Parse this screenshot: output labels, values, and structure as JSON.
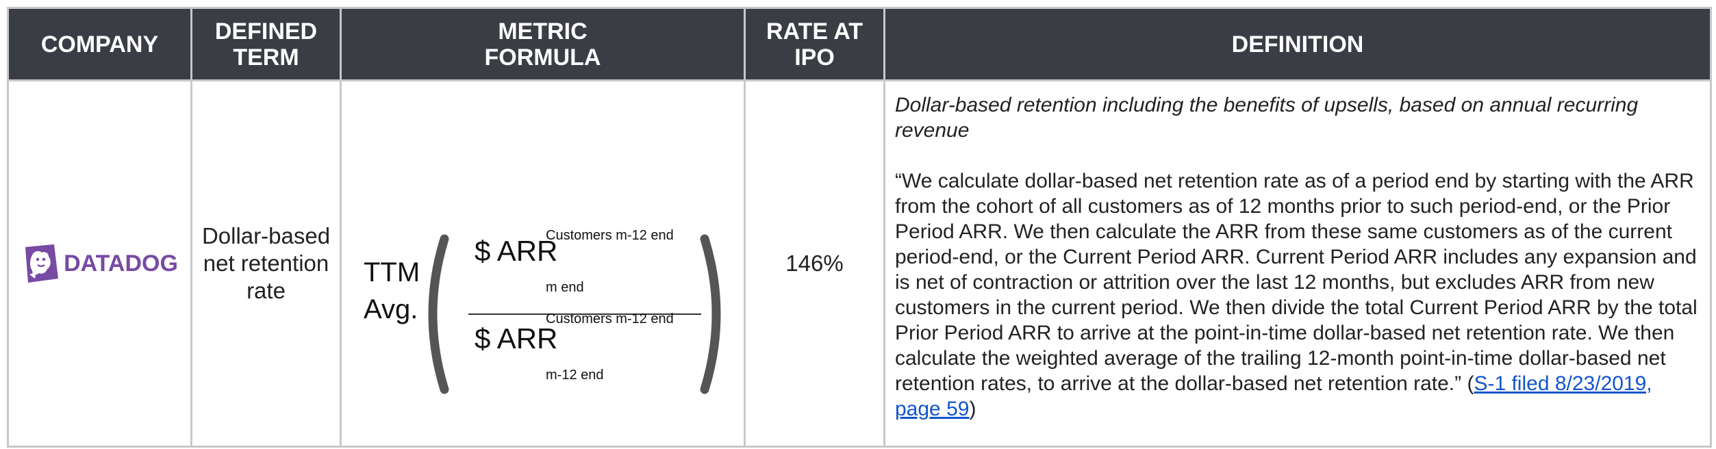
{
  "headers": {
    "company": "COMPANY",
    "term_line1": "DEFINED",
    "term_line2": "TERM",
    "formula_line1": "METRIC",
    "formula_line2": "FORMULA",
    "rate_line1": "RATE AT",
    "rate_line2": "IPO",
    "definition": "DEFINITION"
  },
  "row": {
    "company_logo_text": "DATADOG",
    "term_line1": "Dollar-based",
    "term_line2": "net retention",
    "term_line3": "rate",
    "formula": {
      "prefix_line1": "TTM",
      "prefix_line2": "Avg.",
      "numerator_main": "$ ARR",
      "numerator_superscript": "Customers m-12 end",
      "numerator_subscript": "m end",
      "denominator_main": "$ ARR",
      "denominator_superscript": "Customers m-12 end",
      "denominator_subscript": "m-12 end"
    },
    "rate": "146%",
    "definition_summary": "Dollar-based retention including the benefits of upsells, based on annual recurring revenue",
    "definition_quote": "“We calculate dollar-based net retention rate as of a period end by starting with the ARR from the cohort of all customers as of 12 months prior to such period-end, or the Prior Period ARR. We then calculate the ARR from these same customers as of the current period-end, or the Current Period ARR. Current Period ARR includes any expansion and is net of contraction or attrition over the last 12 months, but excludes ARR from new customers in the current period. We then divide the total Current Period ARR by the total Prior Period ARR to arrive at the point-in-time dollar-based net retention rate. We then calculate the weighted average of the trailing 12-month point-in-time dollar-based net retention rates, to arrive at the dollar-based net retention rate.”",
    "source_open": " (",
    "source_link": "S-1 filed 8/23/2019, page 59",
    "source_close": ")"
  },
  "colors": {
    "header_bg": "#3a3d44",
    "logo_purple": "#774aa4",
    "link": "#1155cc"
  }
}
